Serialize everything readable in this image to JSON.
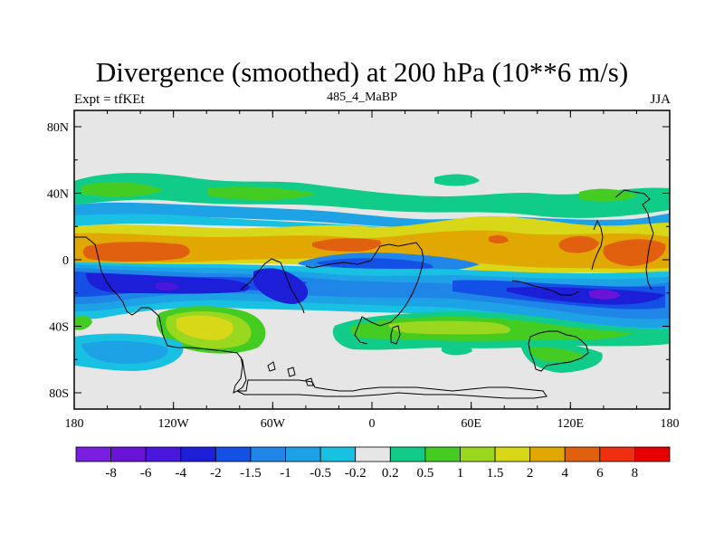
{
  "title": "Divergence (smoothed) at 200 hPa (10**6 m/s)",
  "left_string": "Expt = tfKEt",
  "center_string": "485_4_MaBP",
  "right_string": "JJA",
  "lat_labels": [
    "80N",
    "40N",
    "0",
    "40S",
    "80S"
  ],
  "lon_labels": [
    "180",
    "120W",
    "60W",
    "0",
    "60E",
    "120E",
    "180"
  ],
  "colorbar": {
    "colors": [
      "#7a1fe0",
      "#6a14d8",
      "#4a18dc",
      "#1c1ed8",
      "#1450e6",
      "#1f86e8",
      "#1ea2e6",
      "#18c0e2",
      "#e6e6e6",
      "#11cc88",
      "#44cc22",
      "#99d81e",
      "#d8d818",
      "#e0a800",
      "#e06010",
      "#ee3010",
      "#e60000"
    ],
    "labels": [
      "-8",
      "-6",
      "-4",
      "-2",
      "-1.5",
      "-1",
      "-0.5",
      "-0.2",
      "0.2",
      "0.5",
      "1",
      "1.5",
      "2",
      "4",
      "6",
      "8"
    ]
  },
  "colors": {
    "background": "#e6e6e6",
    "div_orange": "#e0a800",
    "div_red_orange": "#e06010",
    "div_yellow": "#d8d818",
    "div_lime": "#99d81e",
    "div_green": "#44cc22",
    "div_teal": "#11cc88",
    "conv_cyan": "#18c0e2",
    "conv_sky": "#1ea2e6",
    "conv_blue": "#1f86e8",
    "conv_royal": "#1450e6",
    "conv_deep": "#1c1ed8",
    "conv_purple": "#6a14d8"
  }
}
